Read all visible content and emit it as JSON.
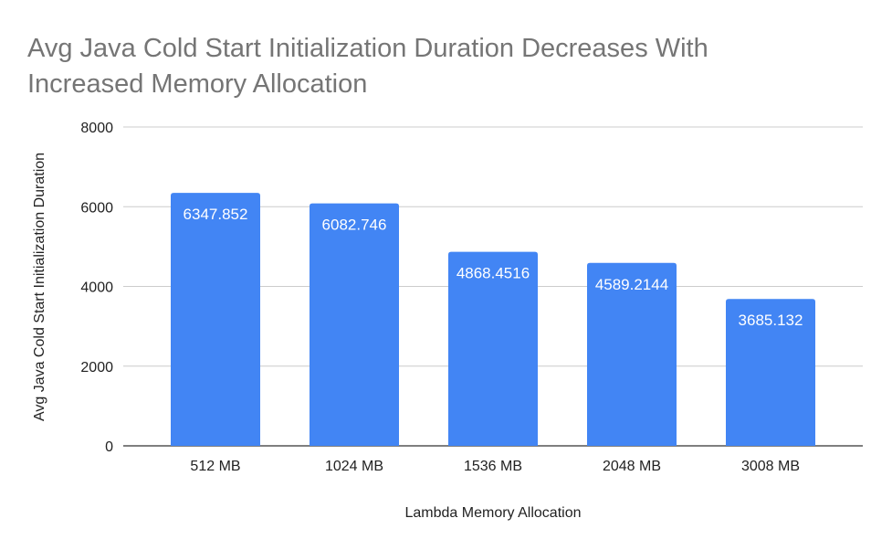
{
  "chart_data": {
    "type": "bar",
    "title_lines": [
      "Avg Java Cold Start Initialization Duration Decreases With",
      "Increased Memory Allocation"
    ],
    "xlabel": "Lambda Memory Allocation",
    "ylabel": "Avg Java Cold Start Initialization Duration",
    "categories": [
      "512 MB",
      "1024 MB",
      "1536 MB",
      "2048 MB",
      "3008 MB"
    ],
    "values": [
      6347.852,
      6082.746,
      4868.4516,
      4589.2144,
      3685.132
    ],
    "data_labels": [
      "6347.852",
      "6082.746",
      "4868.4516",
      "4589.2144",
      "3685.132"
    ],
    "ylim": [
      0,
      8000
    ],
    "yticks": [
      0,
      2000,
      4000,
      6000,
      8000
    ],
    "grid": true,
    "legend": "none",
    "colors": {
      "bar": "#4285f4",
      "grid": "#cccccc",
      "axis": "#333333",
      "title": "#757575"
    }
  }
}
